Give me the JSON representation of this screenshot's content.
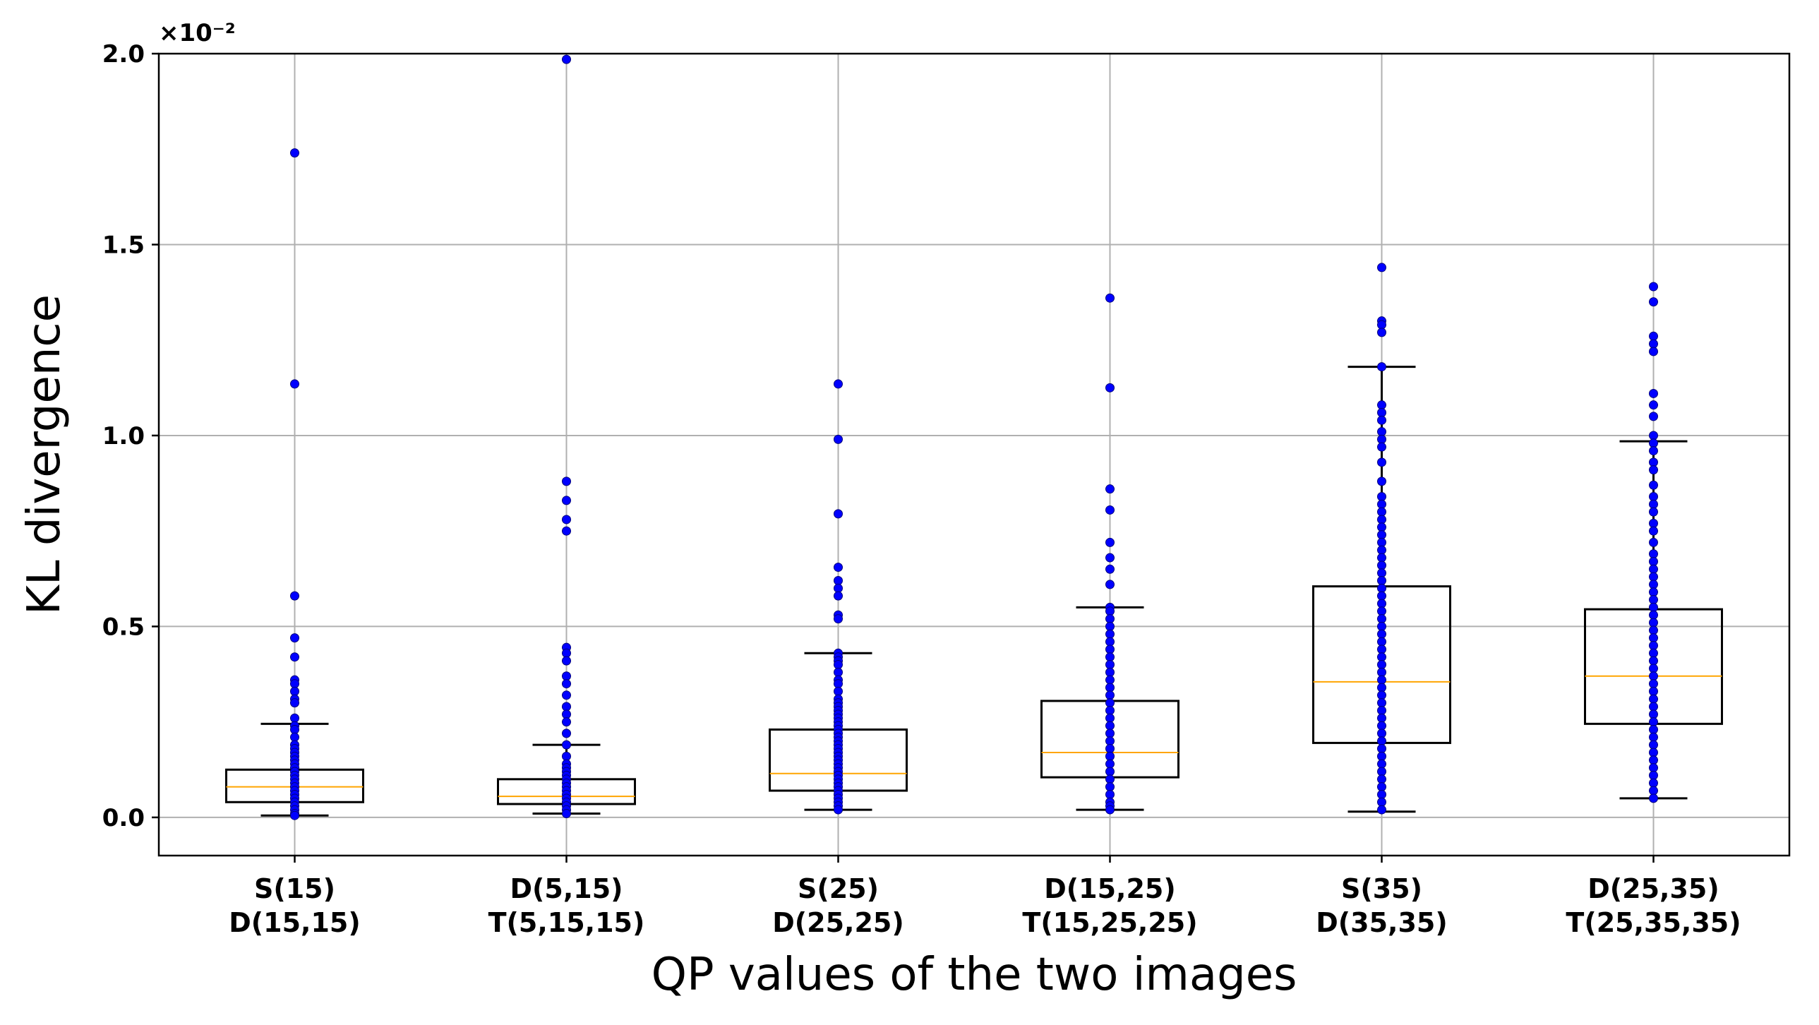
{
  "chart_data": {
    "type": "box",
    "title": "",
    "xlabel": "QP values of the two images",
    "ylabel": "KL divergence",
    "y_scale_label": "×10⁻²",
    "ylim": [
      -0.1,
      2.0
    ],
    "yticks": [
      0.0,
      0.5,
      1.0,
      1.5,
      2.0
    ],
    "ytick_labels": [
      "0.0",
      "0.5",
      "1.0",
      "1.5",
      "2.0"
    ],
    "grid": true,
    "colors": {
      "box": "#000000",
      "median": "#ffa500",
      "points": "#0000ff",
      "grid": "#b0b0b0"
    },
    "categories": [
      {
        "line1": "S(15)",
        "line2": "D(15,15)"
      },
      {
        "line1": "D(5,15)",
        "line2": "T(5,15,15)"
      },
      {
        "line1": "S(25)",
        "line2": "D(25,25)"
      },
      {
        "line1": "D(15,25)",
        "line2": "T(15,25,25)"
      },
      {
        "line1": "S(35)",
        "line2": "D(35,35)"
      },
      {
        "line1": "D(25,35)",
        "line2": "T(25,35,35)"
      }
    ],
    "boxes": [
      {
        "whisker_low": 0.005,
        "q1": 0.04,
        "median": 0.08,
        "q3": 0.125,
        "whisker_high": 0.245,
        "points": [
          1.74,
          1.135,
          0.58,
          0.47,
          0.42,
          0.36,
          0.35,
          0.33,
          0.31,
          0.3,
          0.26,
          0.24,
          0.23,
          0.21,
          0.19,
          0.18,
          0.17,
          0.16,
          0.15,
          0.14,
          0.13,
          0.12,
          0.11,
          0.1,
          0.09,
          0.08,
          0.07,
          0.06,
          0.05,
          0.04,
          0.03,
          0.02,
          0.01,
          0.005
        ]
      },
      {
        "whisker_low": 0.01,
        "q1": 0.035,
        "median": 0.055,
        "q3": 0.1,
        "whisker_high": 0.19,
        "points": [
          1.985,
          0.88,
          0.83,
          0.78,
          0.75,
          0.445,
          0.43,
          0.41,
          0.37,
          0.35,
          0.32,
          0.29,
          0.27,
          0.25,
          0.22,
          0.19,
          0.16,
          0.14,
          0.13,
          0.12,
          0.11,
          0.1,
          0.09,
          0.08,
          0.07,
          0.06,
          0.05,
          0.04,
          0.03,
          0.02,
          0.01
        ]
      },
      {
        "whisker_low": 0.02,
        "q1": 0.07,
        "median": 0.115,
        "q3": 0.23,
        "whisker_high": 0.43,
        "points": [
          1.135,
          0.99,
          0.795,
          0.655,
          0.62,
          0.6,
          0.58,
          0.53,
          0.52,
          0.43,
          0.42,
          0.41,
          0.4,
          0.38,
          0.36,
          0.35,
          0.33,
          0.31,
          0.3,
          0.29,
          0.28,
          0.27,
          0.26,
          0.25,
          0.24,
          0.23,
          0.22,
          0.21,
          0.2,
          0.19,
          0.18,
          0.17,
          0.16,
          0.15,
          0.14,
          0.13,
          0.12,
          0.11,
          0.1,
          0.09,
          0.08,
          0.07,
          0.06,
          0.05,
          0.04,
          0.03,
          0.02
        ]
      },
      {
        "whisker_low": 0.02,
        "q1": 0.105,
        "median": 0.17,
        "q3": 0.305,
        "whisker_high": 0.55,
        "points": [
          1.36,
          1.125,
          0.86,
          0.805,
          0.72,
          0.68,
          0.65,
          0.61,
          0.55,
          0.54,
          0.52,
          0.5,
          0.48,
          0.46,
          0.44,
          0.42,
          0.4,
          0.38,
          0.36,
          0.34,
          0.32,
          0.3,
          0.28,
          0.26,
          0.24,
          0.22,
          0.2,
          0.18,
          0.16,
          0.14,
          0.12,
          0.1,
          0.08,
          0.06,
          0.04,
          0.03,
          0.02
        ]
      },
      {
        "whisker_low": 0.015,
        "q1": 0.195,
        "median": 0.355,
        "q3": 0.605,
        "whisker_high": 1.18,
        "points": [
          1.44,
          1.3,
          1.29,
          1.27,
          1.18,
          1.08,
          1.06,
          1.04,
          1.01,
          0.99,
          0.97,
          0.93,
          0.88,
          0.84,
          0.82,
          0.8,
          0.78,
          0.76,
          0.74,
          0.72,
          0.7,
          0.68,
          0.66,
          0.64,
          0.62,
          0.6,
          0.58,
          0.56,
          0.54,
          0.52,
          0.5,
          0.48,
          0.46,
          0.44,
          0.42,
          0.4,
          0.38,
          0.36,
          0.34,
          0.32,
          0.3,
          0.28,
          0.26,
          0.24,
          0.22,
          0.2,
          0.18,
          0.16,
          0.14,
          0.12,
          0.1,
          0.08,
          0.06,
          0.04,
          0.02
        ]
      },
      {
        "whisker_low": 0.05,
        "q1": 0.245,
        "median": 0.37,
        "q3": 0.545,
        "whisker_high": 0.985,
        "points": [
          1.39,
          1.35,
          1.26,
          1.24,
          1.22,
          1.11,
          1.08,
          1.05,
          1.0,
          0.98,
          0.96,
          0.93,
          0.91,
          0.87,
          0.84,
          0.82,
          0.8,
          0.77,
          0.75,
          0.72,
          0.69,
          0.67,
          0.65,
          0.63,
          0.61,
          0.59,
          0.57,
          0.55,
          0.53,
          0.51,
          0.49,
          0.47,
          0.45,
          0.43,
          0.41,
          0.39,
          0.37,
          0.35,
          0.33,
          0.31,
          0.29,
          0.27,
          0.25,
          0.23,
          0.21,
          0.19,
          0.17,
          0.15,
          0.13,
          0.11,
          0.09,
          0.07,
          0.05
        ]
      }
    ]
  }
}
